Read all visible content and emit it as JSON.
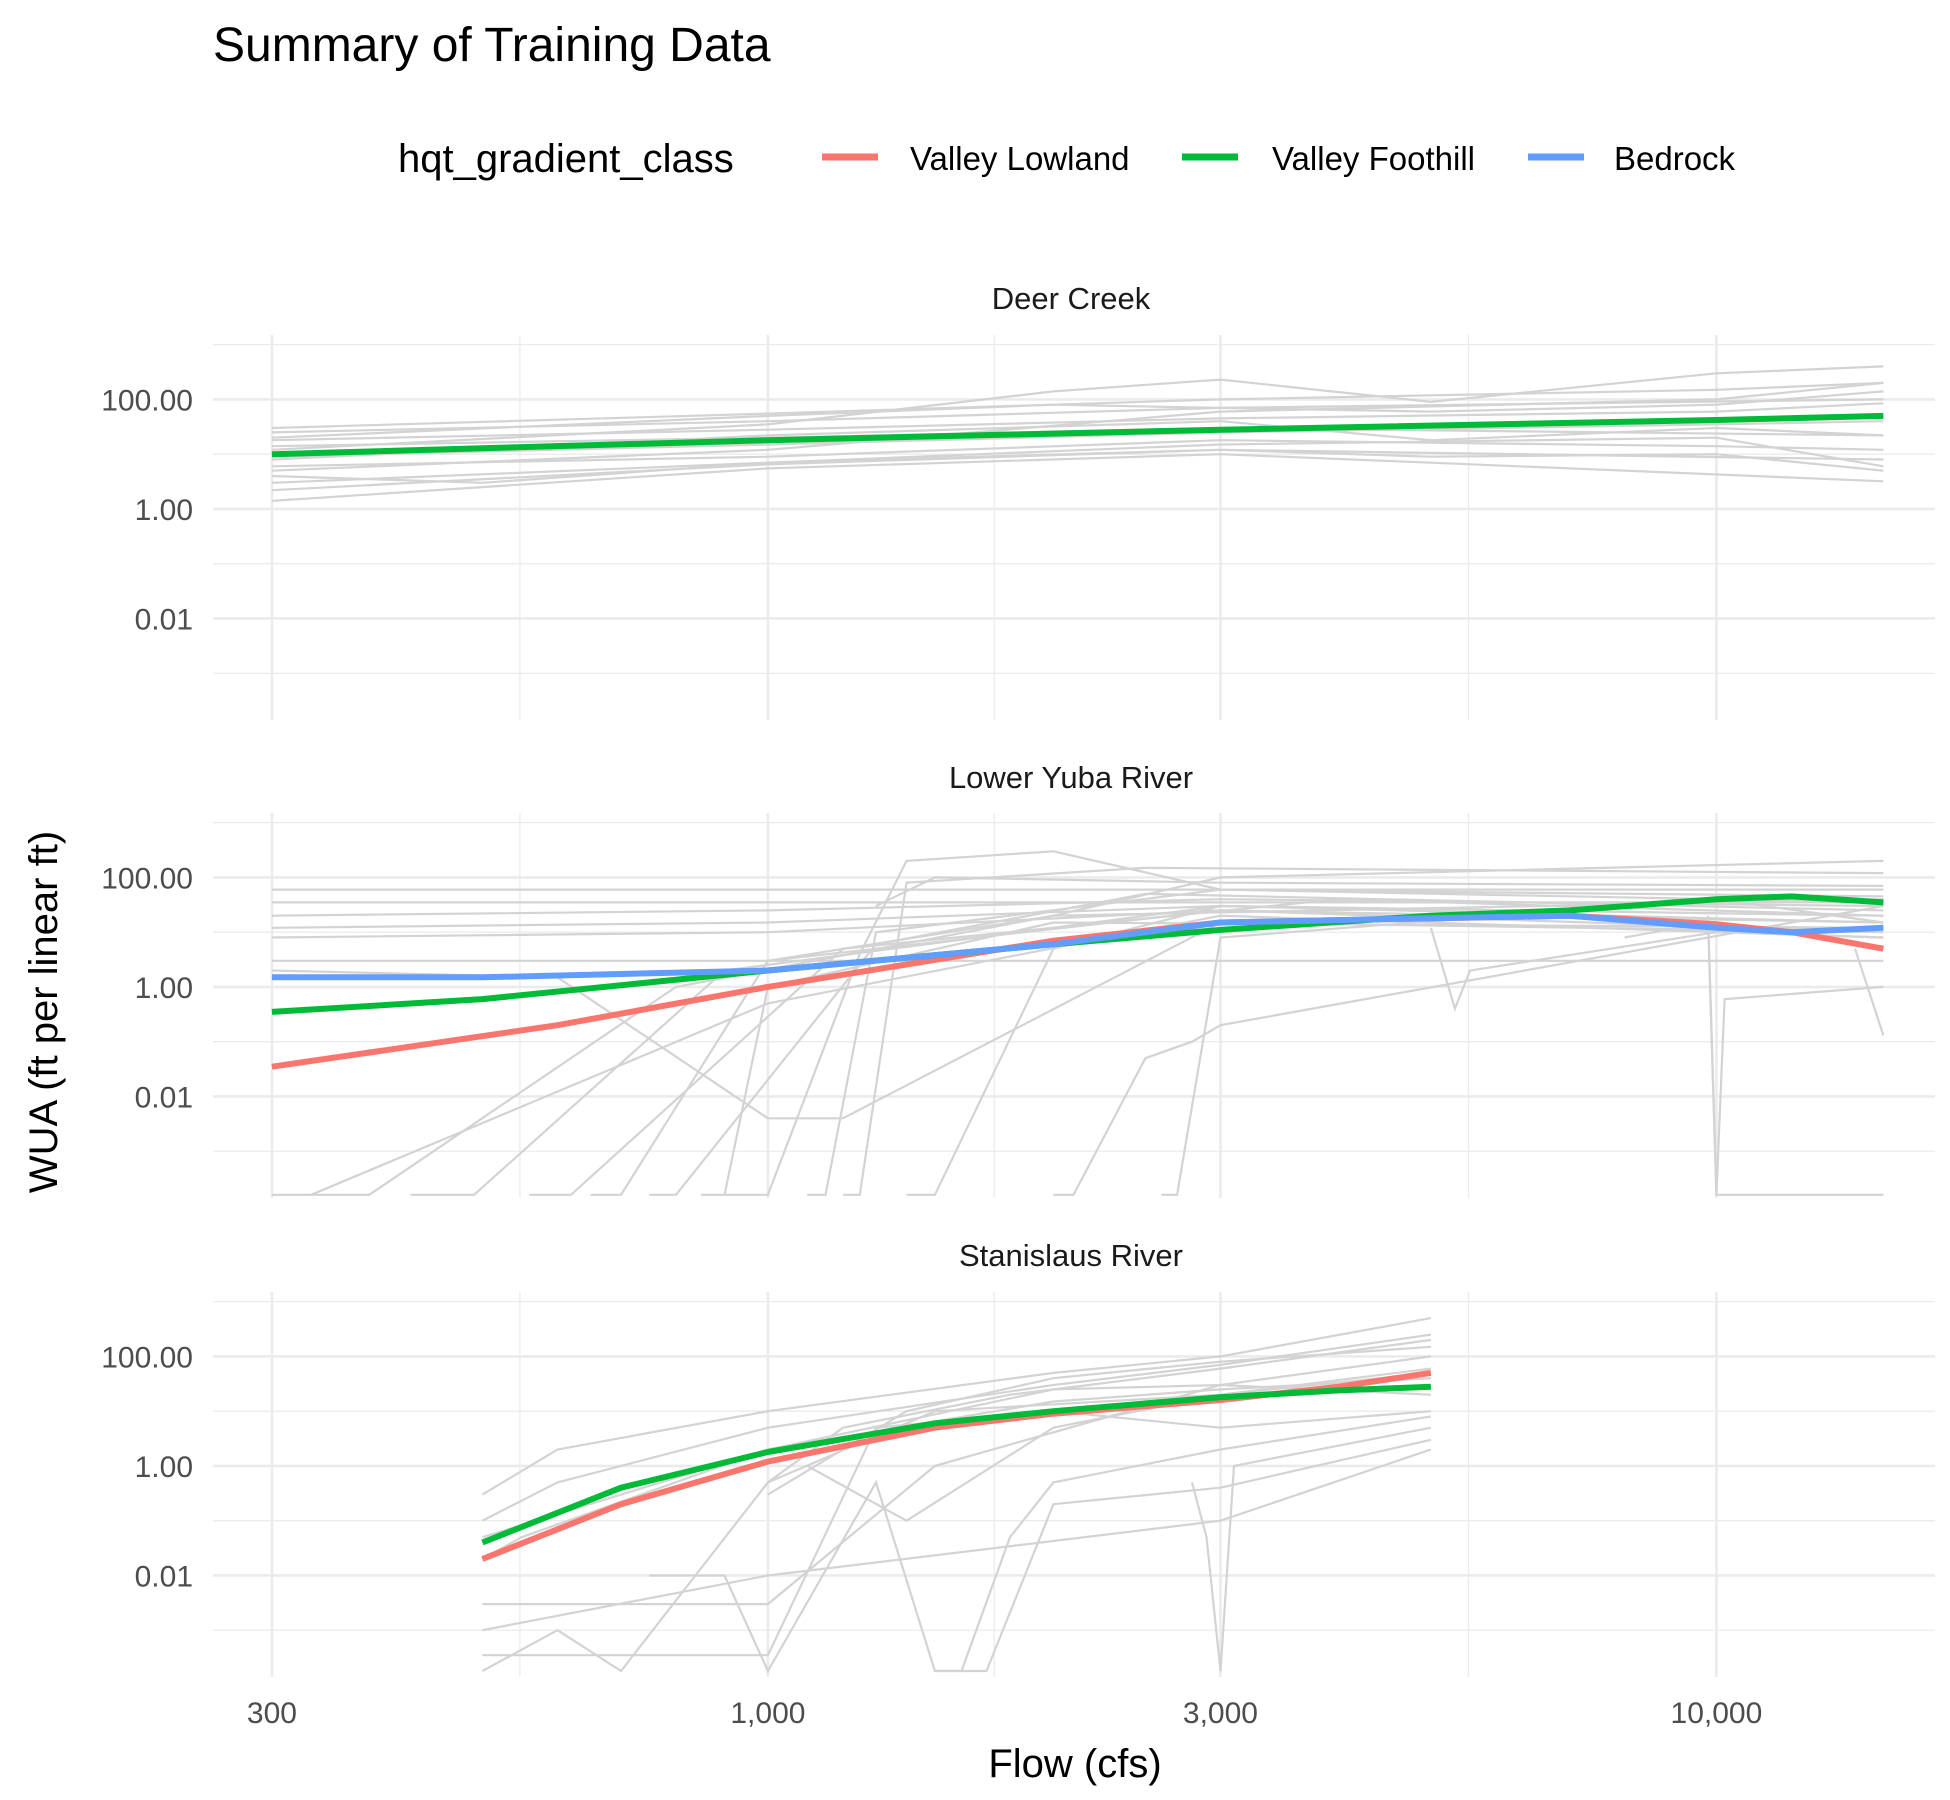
{
  "chart_data": {
    "type": "line",
    "title": "Summary of Training Data",
    "xlabel": "Flow (cfs)",
    "ylabel": "WUA (ft per linear ft)",
    "x_scale": "log10",
    "y_scale": "log10",
    "xlim": [
      260,
      17000
    ],
    "ylim": [
      0.00014,
      1500
    ],
    "x_ticks": [
      300,
      1000,
      3000,
      10000
    ],
    "x_tick_labels": [
      "300",
      "1,000",
      "3,000",
      "10,000"
    ],
    "y_ticks": [
      0.01,
      1,
      100
    ],
    "y_tick_labels": [
      "0.01",
      "1.00",
      "100.00"
    ],
    "grid": true,
    "legend": {
      "title": "hqt_gradient_class",
      "position": "top",
      "entries": [
        {
          "label": "Valley Lowland",
          "color": "#F8766D"
        },
        {
          "label": "Valley Foothill",
          "color": "#00BA38"
        },
        {
          "label": "Bedrock",
          "color": "#619CFF"
        }
      ]
    },
    "background_line_color": "#D3D3D3",
    "panels": [
      {
        "name": "Deer Creek",
        "background_series": [
          {
            "x": [
              300,
              1000,
              3000,
              5000,
              15000
            ],
            "y": [
              1.4,
              5.5,
              10,
              7,
              3.2
            ]
          },
          {
            "x": [
              300,
              500,
              1000,
              3000,
              15000
            ],
            "y": [
              4,
              3,
              7,
              12,
              8
            ]
          },
          {
            "x": [
              300,
              1000,
              3000,
              10000,
              15000
            ],
            "y": [
              6,
              9,
              18,
              14,
              12
            ]
          },
          {
            "x": [
              300,
              1000,
              3000,
              10000,
              15000
            ],
            "y": [
              9,
              15,
              25,
              35,
              40
            ]
          },
          {
            "x": [
              300,
              1000,
              3000,
              15000
            ],
            "y": [
              14,
              20,
              30,
              22
            ]
          },
          {
            "x": [
              300,
              1000,
              3000,
              10000,
              15000
            ],
            "y": [
              18,
              28,
              45,
              60,
              85
            ]
          },
          {
            "x": [
              300,
              1000,
              3000,
              15000
            ],
            "y": [
              25,
              40,
              70,
              100
            ]
          },
          {
            "x": [
              300,
              1000,
              3000,
              10000,
              15000
            ],
            "y": [
              30,
              55,
              100,
              150,
              200
            ]
          },
          {
            "x": [
              300,
              1000,
              2000,
              3000,
              5000,
              10000,
              15000
            ],
            "y": [
              12,
              35,
              140,
              230,
              90,
              300,
              400
            ]
          },
          {
            "x": [
              300,
              1000,
              3000,
              5000,
              10000,
              15000
            ],
            "y": [
              8,
              22,
              40,
              18,
              30,
              22
            ]
          },
          {
            "x": [
              300,
              1000,
              3000,
              10000,
              15000
            ],
            "y": [
              5,
              12,
              60,
              100,
              200
            ]
          },
          {
            "x": [
              300,
              1000,
              2000,
              3000,
              5000,
              10000,
              15000
            ],
            "y": [
              20,
              50,
              80,
              70,
              60,
              80,
              140
            ]
          },
          {
            "x": [
              300,
              1000,
              3000,
              10000,
              15000
            ],
            "y": [
              3,
              7,
              15,
              20,
              6
            ]
          },
          {
            "x": [
              300,
              1000,
              3000,
              5000,
              10000,
              15000
            ],
            "y": [
              2.2,
              6.5,
              12,
              9,
              10,
              5
            ]
          }
        ],
        "smooth_series": [
          {
            "name": "Valley Foothill",
            "x": [
              300,
              1000,
              3000,
              10000,
              15000
            ],
            "y": [
              10,
              18,
              28,
              42,
              50
            ]
          }
        ]
      },
      {
        "name": "Lower Yuba River",
        "background_series": [
          {
            "x": [
              300,
              15000
            ],
            "y": [
              60,
              60
            ]
          },
          {
            "x": [
              300,
              15000
            ],
            "y": [
              35,
              35
            ]
          },
          {
            "x": [
              300,
              1000,
              3000,
              15000
            ],
            "y": [
              20,
              25,
              40,
              30
            ]
          },
          {
            "x": [
              300,
              1000,
              3000,
              15000
            ],
            "y": [
              12,
              15,
              30,
              20
            ]
          },
          {
            "x": [
              300,
              1000,
              3000,
              15000
            ],
            "y": [
              8,
              10,
              25,
              15
            ]
          },
          {
            "x": [
              300,
              15000
            ],
            "y": [
              3,
              3
            ]
          },
          {
            "x": [
              300,
              330,
              1000,
              3000,
              15000
            ],
            "y": [
              0.00016,
              0.00016,
              0.5,
              20,
              8
            ]
          },
          {
            "x": [
              330,
              380,
              800,
              2000,
              15000
            ],
            "y": [
              0.00016,
              0.00016,
              1,
              20,
              40
            ]
          },
          {
            "x": [
              420,
              490,
              900,
              3000,
              15000
            ],
            "y": [
              0.00016,
              0.00016,
              2,
              30,
              15
            ]
          },
          {
            "x": [
              560,
              620,
              1200,
              4000,
              15000
            ],
            "y": [
              0.00016,
              0.00016,
              5,
              40,
              20
            ]
          },
          {
            "x": [
              650,
              700,
              1000,
              3000,
              15000
            ],
            "y": [
              0.00016,
              0.00016,
              3,
              25,
              10
            ]
          },
          {
            "x": [
              750,
              800,
              1300,
              2500,
              15000
            ],
            "y": [
              0.00016,
              0.00016,
              6,
              50,
              25
            ]
          },
          {
            "x": [
              850,
              900,
              1000,
              2000,
              15000
            ],
            "y": [
              0.00016,
              0.00016,
              1,
              15,
              12
            ]
          },
          {
            "x": [
              1100,
              1150,
              1300,
              3000,
              15000
            ],
            "y": [
              0.00016,
              0.00016,
              10,
              60,
              35
            ]
          },
          {
            "x": [
              900,
              1000,
              1250,
              1400,
              2000,
              3000,
              15000
            ],
            "y": [
              0.00016,
              0.00016,
              4,
              200,
              300,
              60,
              45
            ]
          },
          {
            "x": [
              1200,
              1250,
              1400,
              2500,
              15000
            ],
            "y": [
              0.00016,
              0.00016,
              80,
              150,
              120
            ]
          },
          {
            "x": [
              1400,
              1500,
              2000,
              3000,
              15000
            ],
            "y": [
              0.00016,
              0.00016,
              5,
              30,
              20
            ]
          },
          {
            "x": [
              2000,
              2100,
              2500,
              2800,
              3000,
              15000
            ],
            "y": [
              0.00016,
              0.00016,
              0.05,
              0.1,
              0.2,
              30
            ]
          },
          {
            "x": [
              2600,
              2700,
              3000,
              10000,
              15000
            ],
            "y": [
              0.00016,
              0.00016,
              8,
              40,
              15
            ]
          },
          {
            "x": [
              300,
              600,
              1000,
              1200,
              3000,
              15000
            ],
            "y": [
              2,
              1.5,
              0.004,
              0.004,
              15,
              10
            ]
          },
          {
            "x": [
              5000,
              5300,
              5500,
              10000,
              15000
            ],
            "y": [
              12,
              0.4,
              2,
              10,
              8
            ]
          },
          {
            "x": [
              8000,
              9800,
              10000,
              10200,
              15000
            ],
            "y": [
              8,
              15,
              0.00016,
              0.00016,
              0.00016
            ]
          },
          {
            "x": [
              9800,
              10000,
              10200,
              15000
            ],
            "y": [
              20,
              0.00016,
              0.6,
              1
            ]
          },
          {
            "x": [
              14000,
              15000
            ],
            "y": [
              5,
              0.13
            ]
          },
          {
            "x": [
              1000,
              2000,
              3000,
              15000
            ],
            "y": [
              3,
              20,
              100,
              200
            ]
          },
          {
            "x": [
              1300,
              1500,
              3000,
              15000
            ],
            "y": [
              30,
              100,
              80,
              70
            ]
          }
        ],
        "smooth_series": [
          {
            "name": "Valley Lowland",
            "x": [
              300,
              600,
              1000,
              2000,
              3000,
              7000,
              10000,
              12000,
              15000
            ],
            "y": [
              0.035,
              0.2,
              1,
              7,
              15,
              20,
              14,
              10,
              5
            ]
          },
          {
            "name": "Valley Foothill",
            "x": [
              300,
              500,
              1000,
              2000,
              3000,
              5000,
              7000,
              10000,
              12000,
              15000
            ],
            "y": [
              0.35,
              0.6,
              2,
              6,
              11,
              20,
              25,
              40,
              45,
              35
            ]
          },
          {
            "name": "Bedrock",
            "x": [
              300,
              500,
              1000,
              2000,
              3000,
              5000,
              7000,
              10000,
              12000,
              15000
            ],
            "y": [
              1.5,
              1.5,
              2,
              6,
              15,
              18,
              20,
              12,
              10,
              12
            ]
          }
        ]
      },
      {
        "name": "Stanislaus River",
        "background_series": [
          {
            "x": [
              500,
              600,
              1000,
              2000,
              3000,
              5000
            ],
            "y": [
              0.3,
              2,
              10,
              50,
              100,
              500
            ]
          },
          {
            "x": [
              500,
              600,
              1000,
              2000,
              3000,
              5000
            ],
            "y": [
              0.1,
              0.5,
              5,
              30,
              70,
              250
            ]
          },
          {
            "x": [
              500,
              550,
              1000,
              2000,
              3000,
              5000
            ],
            "y": [
              0.02,
              0.05,
              2,
              25,
              30,
              100
            ]
          },
          {
            "x": [
              500,
              700,
              1000,
              1500,
              3000,
              5000
            ],
            "y": [
              0.003,
              0.003,
              0.003,
              1,
              30,
              20
            ]
          },
          {
            "x": [
              500,
              600,
              700,
              1000,
              1500,
              3000,
              5000
            ],
            "y": [
              0.00018,
              0.001,
              0.00018,
              0.5,
              10,
              20,
              60
            ]
          },
          {
            "x": [
              500,
              1000,
              3000,
              5000
            ],
            "y": [
              0.001,
              0.01,
              0.1,
              2
            ]
          },
          {
            "x": [
              500,
              750,
              1000,
              1300,
              2000,
              3000,
              5000
            ],
            "y": [
              0.00035,
              0.00035,
              0.00035,
              5,
              10,
              5,
              10
            ]
          },
          {
            "x": [
              750,
              900,
              1000,
              1300,
              1500,
              1700,
              2000,
              3000,
              5000
            ],
            "y": [
              0.01,
              0.01,
              0.00018,
              0.5,
              0.00018,
              0.00018,
              0.2,
              0.4,
              3
            ]
          },
          {
            "x": [
              1500,
              1600,
              1800,
              2000,
              3000,
              5000
            ],
            "y": [
              0.00018,
              0.00018,
              0.05,
              0.5,
              2,
              8
            ]
          },
          {
            "x": [
              2800,
              2900,
              3000,
              3100,
              5000
            ],
            "y": [
              0.5,
              0.05,
              0.00018,
              1,
              5
            ]
          },
          {
            "x": [
              1000,
              1200,
              1800,
              3000,
              5000
            ],
            "y": [
              0.5,
              5,
              20,
              60,
              200
            ]
          },
          {
            "x": [
              1000,
              1400,
              2000,
              3000,
              5000
            ],
            "y": [
              0.3,
              10,
              40,
              80,
              150
            ]
          },
          {
            "x": [
              500,
              1000,
              2000,
              3000,
              5000
            ],
            "y": [
              0.05,
              2,
              15,
              25,
              40
            ]
          },
          {
            "x": [
              1100,
              1400,
              2000,
              3000,
              5000
            ],
            "y": [
              1,
              0.1,
              5,
              20,
              50
            ]
          }
        ],
        "smooth_series": [
          {
            "name": "Valley Lowland",
            "x": [
              500,
              700,
              1000,
              1500,
              2000,
              3000,
              4000,
              5000
            ],
            "y": [
              0.02,
              0.2,
              1.2,
              5,
              9,
              16,
              28,
              50
            ]
          },
          {
            "name": "Valley Foothill",
            "x": [
              500,
              700,
              1000,
              1500,
              2000,
              3000,
              4000,
              5000
            ],
            "y": [
              0.04,
              0.4,
              1.8,
              6,
              10,
              18,
              24,
              28
            ]
          }
        ]
      }
    ]
  }
}
